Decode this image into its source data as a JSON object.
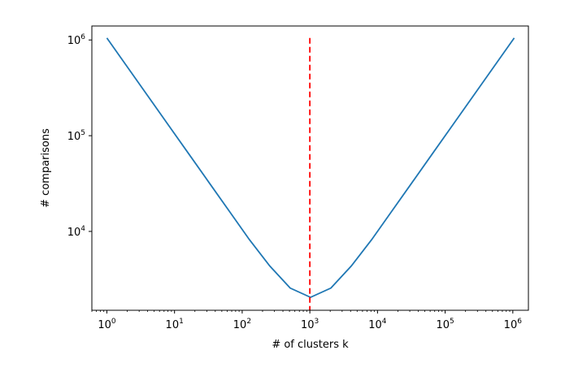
{
  "chart_data": {
    "type": "line",
    "title": "",
    "xlabel": "# of clusters k",
    "ylabel": "# comparisons",
    "xscale": "log",
    "yscale": "log",
    "xlim": [
      0.6,
      1700000
    ],
    "ylim": [
      1500,
      1400000
    ],
    "grid": false,
    "legend": "none",
    "x_ticks": [
      {
        "base": "10",
        "exp": "0",
        "value": 1
      },
      {
        "base": "10",
        "exp": "1",
        "value": 10
      },
      {
        "base": "10",
        "exp": "2",
        "value": 100
      },
      {
        "base": "10",
        "exp": "3",
        "value": 1000
      },
      {
        "base": "10",
        "exp": "4",
        "value": 10000
      },
      {
        "base": "10",
        "exp": "5",
        "value": 100000
      },
      {
        "base": "10",
        "exp": "6",
        "value": 1000000
      }
    ],
    "y_ticks": [
      {
        "base": "10",
        "exp": "4",
        "value": 10000
      },
      {
        "base": "10",
        "exp": "5",
        "value": 100000
      },
      {
        "base": "10",
        "exp": "6",
        "value": 1000000
      }
    ],
    "series": [
      {
        "color": "#1f77b4",
        "points": [
          [
            1,
            1048576
          ],
          [
            2,
            524288
          ],
          [
            4,
            262144
          ],
          [
            8,
            131072
          ],
          [
            16,
            65536
          ],
          [
            32,
            32768
          ],
          [
            64,
            16384
          ],
          [
            128,
            8192
          ],
          [
            256,
            4352
          ],
          [
            512,
            2560
          ],
          [
            1024,
            2048
          ],
          [
            2048,
            2560
          ],
          [
            4096,
            4352
          ],
          [
            8192,
            8192
          ],
          [
            16384,
            16384
          ],
          [
            32768,
            32768
          ],
          [
            65536,
            65536
          ],
          [
            131072,
            131072
          ],
          [
            262144,
            262144
          ],
          [
            524288,
            524288
          ],
          [
            1048576,
            1048576
          ]
        ]
      }
    ],
    "vline": {
      "x": 1000,
      "color": "#ff0000",
      "style": "dashed"
    }
  }
}
